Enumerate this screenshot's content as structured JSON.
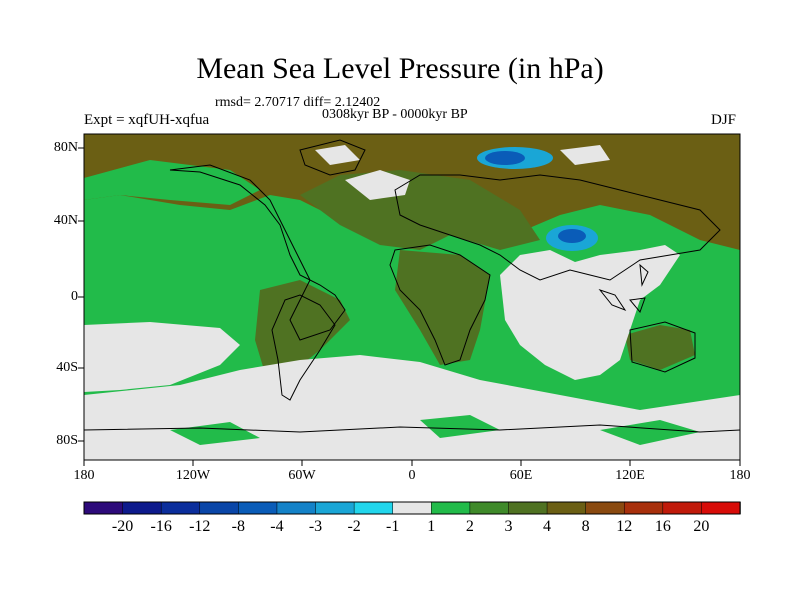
{
  "title": "Mean Sea Level Pressure (in hPa)",
  "stats": "rmsd= 2.70717  diff= 2.12402",
  "period": "0308kyr BP - 0000kyr BP",
  "experiment": "Expt = xqfUH-xqfua",
  "season": "DJF",
  "lat_labels": [
    "80N",
    "40N",
    "0",
    "40S",
    "80S"
  ],
  "lon_labels": [
    "180",
    "120W",
    "60W",
    "0",
    "60E",
    "120E",
    "180"
  ],
  "colorbar": {
    "labels": [
      "-20",
      "-16",
      "-12",
      "-8",
      "-4",
      "-3",
      "-2",
      "-1",
      "1",
      "2",
      "3",
      "4",
      "8",
      "12",
      "16",
      "20"
    ],
    "colors": [
      "#2d0a7a",
      "#0d1a8c",
      "#0b2e9c",
      "#0a46a8",
      "#0a5cb8",
      "#1482c8",
      "#1aa6d6",
      "#22d6ec",
      "#e6e6e6",
      "#22bb4a",
      "#3f8a2a",
      "#4f7222",
      "#6b5f14",
      "#8a4a10",
      "#a8300c",
      "#c01a0a",
      "#d80c08"
    ]
  },
  "colors": {
    "ocean_green": "#22bb4a",
    "land_dark": "#4f7222",
    "brown": "#6b5f14",
    "light": "#e6e6e6",
    "blue_low": "#0a5cb8",
    "blue_mid": "#1aa6d6"
  }
}
